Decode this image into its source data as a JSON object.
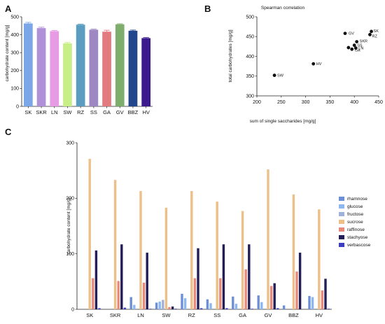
{
  "panels": {
    "a": "A",
    "b": "B",
    "c": "C"
  },
  "chart_data": [
    {
      "type": "bar",
      "panel": "A",
      "title": "",
      "xlabel": "",
      "ylabel": "carbohydrate content [mg/g]",
      "ylim": [
        0,
        500
      ],
      "yticks": [
        0,
        100,
        200,
        300,
        400,
        500
      ],
      "categories": [
        "SK",
        "SKR",
        "LN",
        "SW",
        "RZ",
        "SS",
        "GA",
        "GV",
        "BBZ",
        "HV"
      ],
      "values": [
        463,
        437,
        420,
        352,
        456,
        428,
        417,
        458,
        422,
        381
      ],
      "errors": [
        6,
        5,
        4,
        5,
        3,
        3,
        8,
        3,
        4,
        3
      ],
      "colors": [
        "#7BA7E8",
        "#B090D8",
        "#E79BE4",
        "#C8EE88",
        "#5A9DC0",
        "#9D88C4",
        "#E37A80",
        "#7FAE6C",
        "#22468C",
        "#3B1A8E"
      ]
    },
    {
      "type": "scatter",
      "panel": "B",
      "title": "Spearman correlation",
      "xlabel": "sum of single saccharides [mg/g]",
      "ylabel": "total carbohydrates [mg/g]",
      "xlim": [
        200,
        450
      ],
      "ylim": [
        300,
        500
      ],
      "xticks": [
        200,
        250,
        300,
        350,
        400,
        450
      ],
      "yticks": [
        300,
        350,
        400,
        450,
        500
      ],
      "points": [
        {
          "label": "SK",
          "x": 435,
          "y": 463
        },
        {
          "label": "RZ",
          "x": 432,
          "y": 455
        },
        {
          "label": "GV",
          "x": 381,
          "y": 458
        },
        {
          "label": "SKR",
          "x": 405,
          "y": 437
        },
        {
          "label": "SS",
          "x": 400,
          "y": 428
        },
        {
          "label": "LN",
          "x": 403,
          "y": 421
        },
        {
          "label": "BBZ",
          "x": 388,
          "y": 422
        },
        {
          "label": "GA",
          "x": 395,
          "y": 418
        },
        {
          "label": "HV",
          "x": 316,
          "y": 381
        },
        {
          "label": "SW",
          "x": 236,
          "y": 352
        }
      ],
      "label_text": [
        "SK",
        "RZ",
        "GV",
        "SKR",
        "SS",
        "LN",
        "GA",
        "HV",
        "SW"
      ]
    },
    {
      "type": "bar",
      "panel": "C",
      "title": "",
      "xlabel": "",
      "ylabel": "carbohydrate content [mg/g]",
      "ylim": [
        0,
        300
      ],
      "yticks": [
        0,
        100,
        200,
        300
      ],
      "categories": [
        "SK",
        "SKR",
        "LN",
        "SW",
        "RZ",
        "SS",
        "GA",
        "GV",
        "BBZ",
        "HV"
      ],
      "legend_position": "right",
      "series": [
        {
          "name": "rhamnose",
          "color": "#6C8FD6",
          "values": [
            0,
            0,
            22,
            12,
            28,
            18,
            23,
            25,
            7,
            24
          ]
        },
        {
          "name": "glucose",
          "color": "#8DB7F0",
          "values": [
            0,
            0,
            8,
            14,
            20,
            11,
            10,
            13,
            0,
            22
          ]
        },
        {
          "name": "fructose",
          "color": "#9FB3DA",
          "values": [
            0,
            0,
            0,
            17,
            0,
            0,
            0,
            0,
            0,
            0
          ]
        },
        {
          "name": "sucrose",
          "color": "#EDC08A",
          "values": [
            271,
            233,
            213,
            183,
            213,
            194,
            177,
            252,
            207,
            180
          ]
        },
        {
          "name": "raffinose",
          "color": "#E9897A",
          "values": [
            56,
            51,
            48,
            4,
            56,
            56,
            72,
            42,
            68,
            34
          ]
        },
        {
          "name": "stachyose",
          "color": "#231E57",
          "values": [
            106,
            117,
            102,
            5,
            110,
            117,
            117,
            47,
            102,
            55
          ]
        },
        {
          "name": "verbascose",
          "color": "#3D3FC2",
          "values": [
            2,
            3,
            1,
            1,
            2,
            2,
            1,
            2,
            0,
            1
          ]
        }
      ]
    }
  ]
}
